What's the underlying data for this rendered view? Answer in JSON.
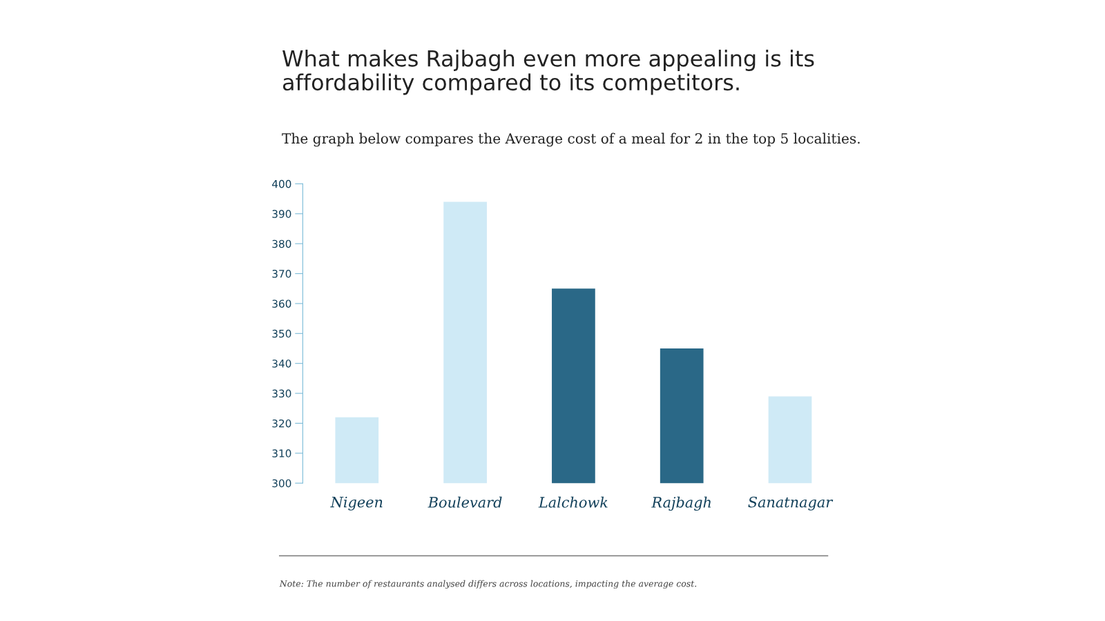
{
  "chart_data": {
    "type": "bar",
    "title": "What makes Rajbagh even more appealing is its\naffordability compared to its competitors.",
    "subtitle": "The graph below compares the Average cost of a meal for 2 in the top 5 localities.",
    "categories": [
      "Nigeen",
      "Boulevard",
      "Lalchowk",
      "Rajbagh",
      "Sanatnagar"
    ],
    "values": [
      322,
      394,
      365,
      345,
      329
    ],
    "colors": [
      "#cfeaf6",
      "#cfeaf6",
      "#2a6887",
      "#2a6887",
      "#cfeaf6"
    ],
    "ylim": [
      300,
      400
    ],
    "yticks": [
      300,
      310,
      320,
      330,
      340,
      350,
      360,
      370,
      380,
      390,
      400
    ],
    "grid": false,
    "annotations": [
      "Note: The number of restaurants analysed differs across locations, impacting the average cost."
    ]
  }
}
